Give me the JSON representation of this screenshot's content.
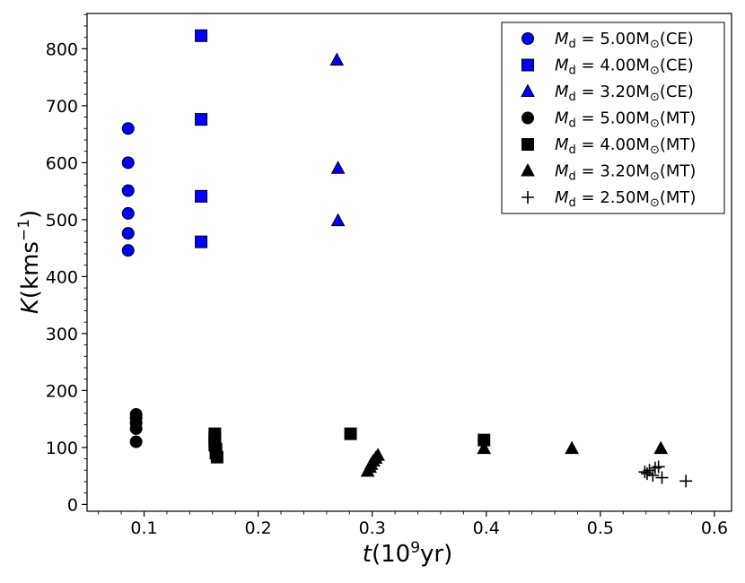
{
  "chart_data": {
    "type": "scatter",
    "title": "",
    "xlabel": "t(10^9yr)",
    "ylabel": "K(kms^-1)",
    "xlim": [
      0.05,
      0.615
    ],
    "ylim": [
      -12,
      862
    ],
    "xticks": [
      0.1,
      0.2,
      0.3,
      0.4,
      0.5,
      0.6
    ],
    "xtick_labels": [
      "0.1",
      "0.2",
      "0.3",
      "0.4",
      "0.5",
      "0.6"
    ],
    "yticks": [
      0,
      100,
      200,
      300,
      400,
      500,
      600,
      700,
      800
    ],
    "ytick_labels": [
      "0",
      "100",
      "200",
      "300",
      "400",
      "500",
      "600",
      "700",
      "800"
    ],
    "grid": false,
    "legend_position": "top-right",
    "series": [
      {
        "name": "M_d = 5.00M⊙(CE)",
        "label": "5.00M",
        "suffix": "(CE)",
        "marker": "circle",
        "color": "#0000ff",
        "points": [
          [
            0.086,
            660
          ],
          [
            0.086,
            600
          ],
          [
            0.086,
            551
          ],
          [
            0.086,
            511
          ],
          [
            0.086,
            476
          ],
          [
            0.086,
            446
          ]
        ]
      },
      {
        "name": "M_d = 4.00M⊙(CE)",
        "label": "4.00M",
        "suffix": "(CE)",
        "marker": "square",
        "color": "#0000ff",
        "points": [
          [
            0.15,
            823
          ],
          [
            0.15,
            676
          ],
          [
            0.15,
            541
          ],
          [
            0.15,
            461
          ]
        ]
      },
      {
        "name": "M_d = 3.20M⊙(CE)",
        "label": "3.20M",
        "suffix": "(CE)",
        "marker": "triangle",
        "color": "#0000ff",
        "points": [
          [
            0.269,
            780
          ],
          [
            0.27,
            590
          ],
          [
            0.27,
            498
          ]
        ]
      },
      {
        "name": "M_d = 5.00M⊙(MT)",
        "label": "5.00M",
        "suffix": "(MT)",
        "marker": "circle",
        "color": "#000000",
        "points": [
          [
            0.093,
            158
          ],
          [
            0.093,
            152
          ],
          [
            0.093,
            143
          ],
          [
            0.093,
            133
          ],
          [
            0.093,
            110
          ]
        ]
      },
      {
        "name": "M_d = 4.00M⊙(MT)",
        "label": "4.00M",
        "suffix": "(MT)",
        "marker": "square",
        "color": "#000000",
        "points": [
          [
            0.162,
            124
          ],
          [
            0.162,
            117
          ],
          [
            0.162,
            111
          ],
          [
            0.162,
            104
          ],
          [
            0.163,
            97
          ],
          [
            0.163,
            90
          ],
          [
            0.164,
            83
          ],
          [
            0.281,
            124
          ],
          [
            0.398,
            113
          ]
        ]
      },
      {
        "name": "M_d = 3.20M⊙(MT)",
        "label": "3.20M",
        "suffix": "(MT)",
        "marker": "triangle",
        "color": "#000000",
        "points": [
          [
            0.296,
            58
          ],
          [
            0.298,
            65
          ],
          [
            0.299,
            70
          ],
          [
            0.301,
            76
          ],
          [
            0.303,
            81
          ],
          [
            0.305,
            86
          ],
          [
            0.398,
            98
          ],
          [
            0.475,
            98
          ],
          [
            0.553,
            98
          ]
        ]
      },
      {
        "name": "M_d = 2.50M⊙(MT)",
        "label": "2.50M",
        "suffix": "(MT)",
        "marker": "plus",
        "color": "#000000",
        "points": [
          [
            0.539,
            57
          ],
          [
            0.541,
            54
          ],
          [
            0.543,
            60
          ],
          [
            0.546,
            51
          ],
          [
            0.548,
            64
          ],
          [
            0.551,
            66
          ],
          [
            0.554,
            47
          ],
          [
            0.575,
            41
          ]
        ]
      }
    ]
  }
}
